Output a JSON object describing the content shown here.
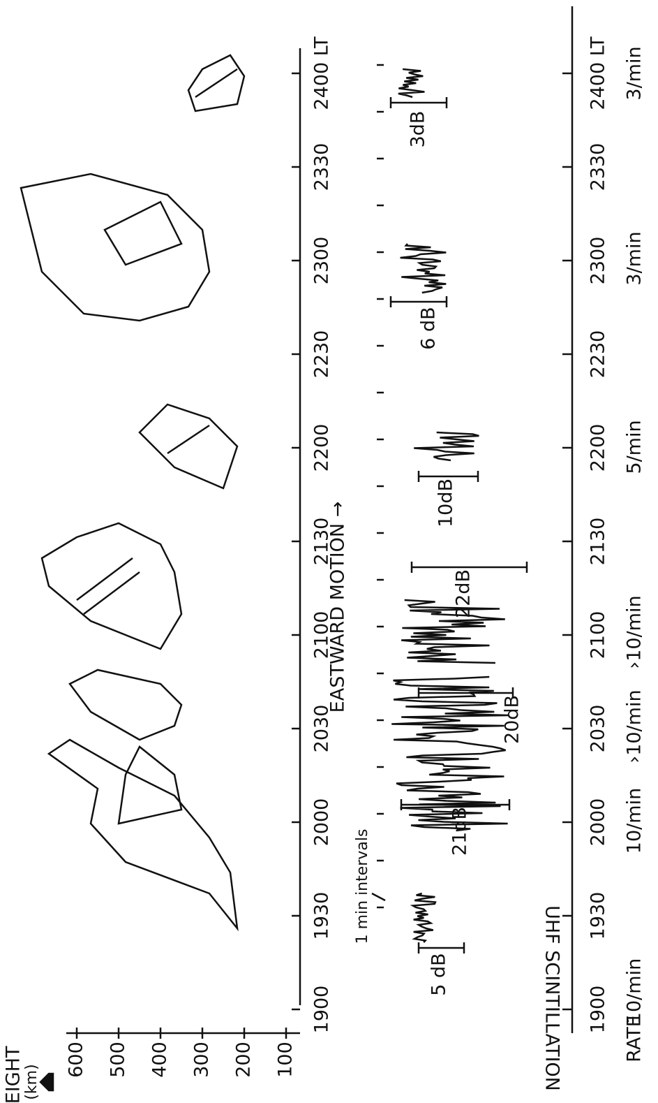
{
  "height_axis": {
    "label": "HEIGHT",
    "unit": "(km)",
    "ticks": [
      "600",
      "500",
      "400",
      "300",
      "200",
      "100"
    ]
  },
  "time_axis": {
    "ticks": [
      "1900",
      "1930",
      "2000",
      "2030",
      "2100",
      "2130",
      "2200",
      "2230",
      "2300",
      "2330",
      "2400 LT"
    ]
  },
  "motion_label": "EASTWARD MOTION →",
  "interval_label": "1 min intervals",
  "scintillation_label": "UHF SCINTILLATION",
  "fades": [
    "5 dB",
    "21dB",
    "20dB",
    "22dB",
    "10dB",
    "6 dB",
    "3dB"
  ],
  "rate": {
    "label": "RATE",
    "values": [
      "10/min",
      "10/min",
      "›10/min",
      "›10/min",
      "5/min",
      "3/min",
      "3/min"
    ]
  }
}
